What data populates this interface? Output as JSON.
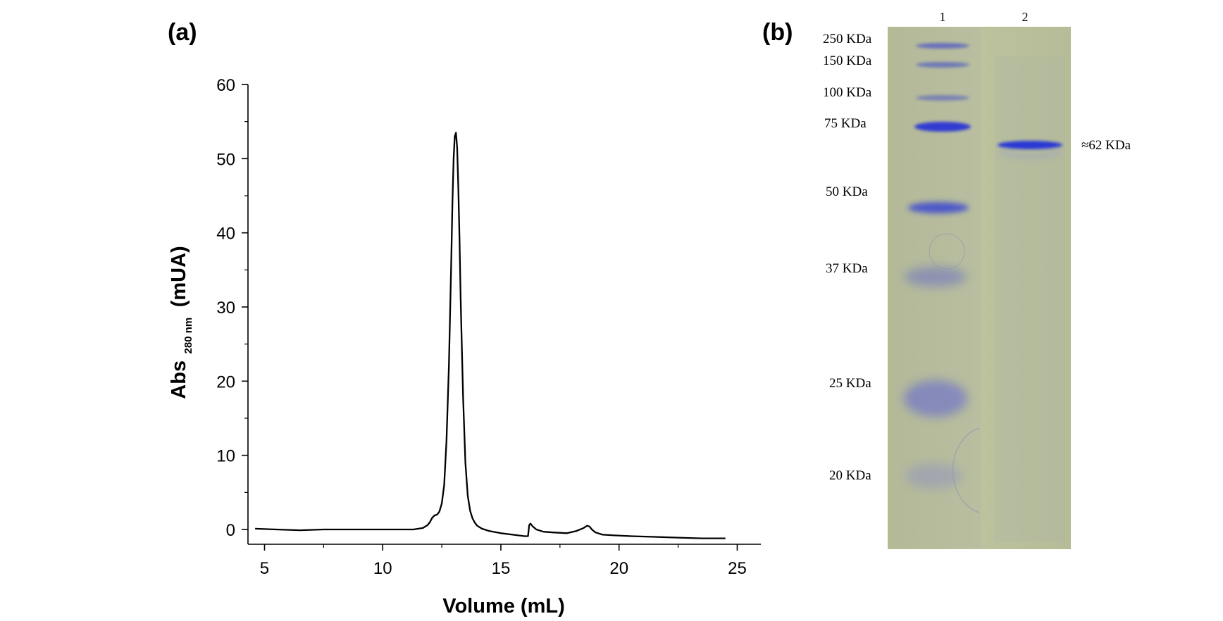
{
  "panels": {
    "a_label": "(a)",
    "b_label": "(b)"
  },
  "chart_data": [
    {
      "type": "line",
      "title": "",
      "xlabel": "Volume (mL)",
      "ylabel_main": "Abs",
      "ylabel_sub": "280 nm",
      "ylabel_unit": "(mUA)",
      "xlim": [
        4.3,
        26.0
      ],
      "ylim": [
        -2,
        60
      ],
      "xticks": [
        5,
        10,
        15,
        20,
        25
      ],
      "yticks": [
        0,
        10,
        20,
        30,
        40,
        50,
        60
      ],
      "grid": false,
      "series": [
        {
          "color": "#000000",
          "x": [
            4.6,
            5.5,
            6.5,
            7.5,
            8.5,
            9.5,
            10.5,
            11.3,
            11.7,
            11.9,
            12.0,
            12.1,
            12.2,
            12.3,
            12.4,
            12.5,
            12.6,
            12.7,
            12.8,
            12.9,
            12.95,
            13.0,
            13.05,
            13.1,
            13.15,
            13.2,
            13.25,
            13.3,
            13.4,
            13.5,
            13.6,
            13.7,
            13.8,
            13.9,
            14.0,
            14.2,
            14.5,
            15.0,
            15.5,
            16.0,
            16.15,
            16.2,
            16.25,
            16.35,
            16.5,
            16.8,
            17.2,
            17.8,
            18.2,
            18.5,
            18.65,
            18.75,
            18.85,
            19.0,
            19.3,
            19.8,
            20.5,
            21.5,
            22.5,
            23.5,
            24.5
          ],
          "y": [
            0.1,
            0.0,
            -0.1,
            0.0,
            0.0,
            0.0,
            0.0,
            0.0,
            0.2,
            0.6,
            1.0,
            1.6,
            1.9,
            2.0,
            2.4,
            3.5,
            6.0,
            12.0,
            22.0,
            36.0,
            44.0,
            50.0,
            53.0,
            53.5,
            51.5,
            46.0,
            39.0,
            31.0,
            18.0,
            9.0,
            4.5,
            2.5,
            1.5,
            0.9,
            0.5,
            0.1,
            -0.2,
            -0.5,
            -0.7,
            -0.9,
            -0.9,
            0.6,
            0.8,
            0.4,
            0.0,
            -0.3,
            -0.4,
            -0.5,
            -0.2,
            0.2,
            0.5,
            0.4,
            0.0,
            -0.4,
            -0.7,
            -0.8,
            -0.9,
            -1.0,
            -1.1,
            -1.2,
            -1.2
          ]
        }
      ]
    },
    {
      "type": "gel",
      "lanes": [
        "1",
        "2"
      ],
      "markers": [
        "250 KDa",
        "150 KDa",
        "100 KDa",
        "75 KDa",
        "50 KDa",
        "37 KDa",
        "25 KDa",
        "20 KDa"
      ],
      "sample_band_label": "≈62 KDa",
      "background_color": "#b7bd98",
      "band_color": "#2d3ad0"
    }
  ]
}
